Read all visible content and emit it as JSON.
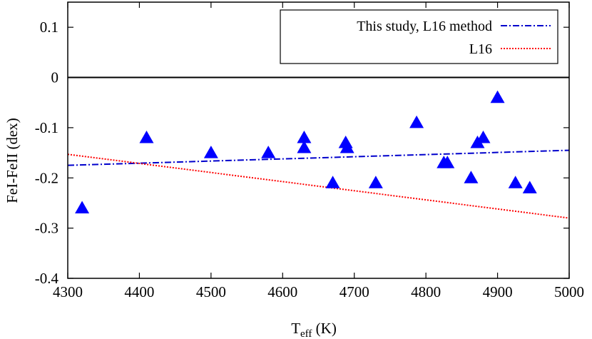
{
  "chart_data": {
    "type": "scatter",
    "xlabel": {
      "main": "T",
      "sub": "eff",
      "unit": " (K)"
    },
    "ylabel": "FeI-FeII (dex)",
    "xlim": [
      4300,
      5000
    ],
    "ylim": [
      -0.4,
      0.15
    ],
    "x_ticks": [
      4300,
      4400,
      4500,
      4600,
      4700,
      4800,
      4900,
      5000
    ],
    "y_ticks": [
      0.1,
      0,
      -0.1,
      -0.2,
      -0.3,
      -0.4
    ],
    "y_tick_labels": [
      "0.1",
      "0",
      "-0.1",
      "-0.2",
      "-0.3",
      "-0.4"
    ],
    "zero_line": 0,
    "grid": false,
    "legend_placement": "top-right",
    "points": [
      {
        "x": 4320,
        "y": -0.26
      },
      {
        "x": 4410,
        "y": -0.12
      },
      {
        "x": 4500,
        "y": -0.15
      },
      {
        "x": 4580,
        "y": -0.15
      },
      {
        "x": 4630,
        "y": -0.12
      },
      {
        "x": 4630,
        "y": -0.14
      },
      {
        "x": 4670,
        "y": -0.21
      },
      {
        "x": 4688,
        "y": -0.13
      },
      {
        "x": 4690,
        "y": -0.14
      },
      {
        "x": 4730,
        "y": -0.21
      },
      {
        "x": 4787,
        "y": -0.09
      },
      {
        "x": 4825,
        "y": -0.17
      },
      {
        "x": 4830,
        "y": -0.17
      },
      {
        "x": 4863,
        "y": -0.2
      },
      {
        "x": 4872,
        "y": -0.13
      },
      {
        "x": 4880,
        "y": -0.12
      },
      {
        "x": 4900,
        "y": -0.04
      },
      {
        "x": 4925,
        "y": -0.21
      },
      {
        "x": 4945,
        "y": -0.22
      }
    ],
    "series": [
      {
        "name": "This study, L16 method",
        "style": "dash-dot",
        "color": "#0000cc",
        "x": [
          4300,
          5000
        ],
        "y": [
          -0.175,
          -0.145
        ]
      },
      {
        "name": "L16",
        "style": "dotted",
        "color": "#ff0000",
        "x": [
          4300,
          5000
        ],
        "y": [
          -0.153,
          -0.28
        ]
      }
    ],
    "marker_color": "#0000ff"
  }
}
